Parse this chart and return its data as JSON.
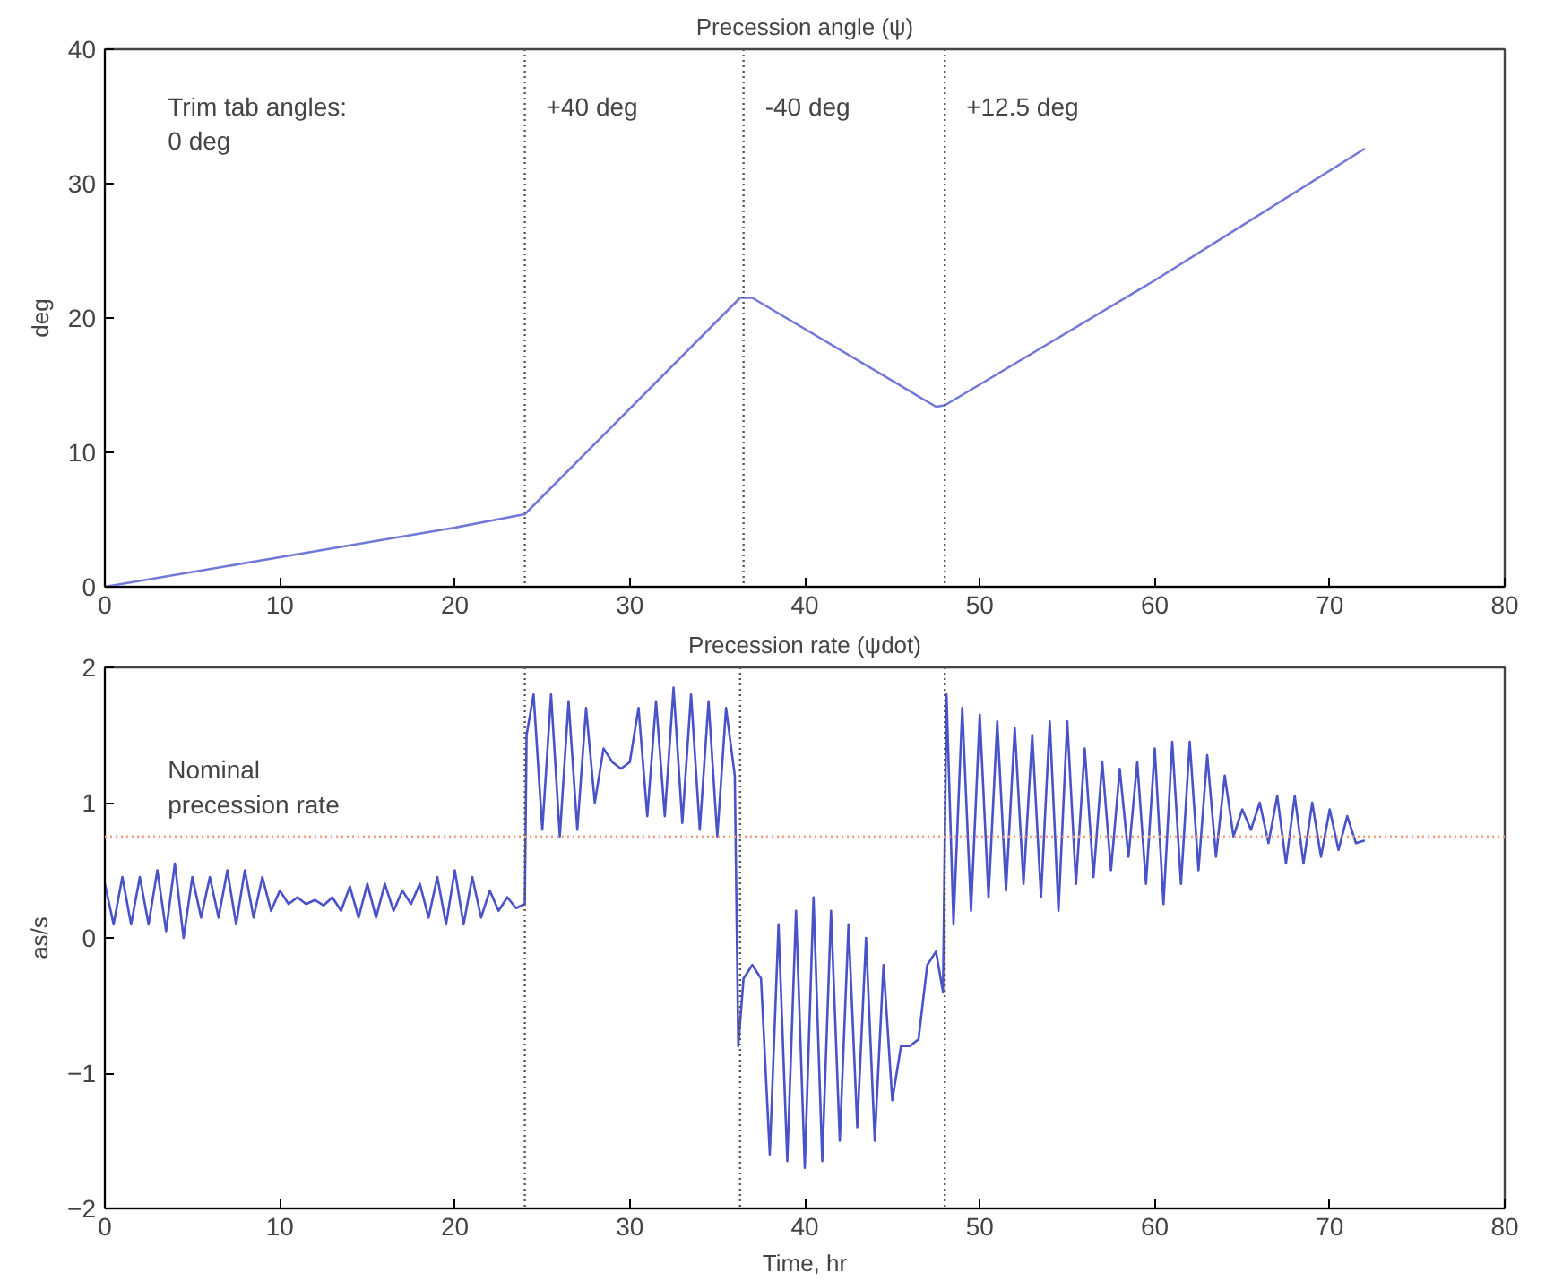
{
  "chart_data": [
    {
      "type": "line",
      "title": "Precession angle (ψ)",
      "ylabel": "deg",
      "x": [
        0,
        10,
        20,
        24,
        36.3,
        37,
        47.5,
        48,
        60,
        72
      ],
      "series": [
        {
          "color": "#7378d8",
          "values": [
            0,
            2.2,
            4.4,
            5.4,
            21.5,
            21.5,
            13.4,
            13.5,
            22.8,
            32.6
          ]
        }
      ],
      "xlim": [
        0,
        80
      ],
      "ylim": [
        0,
        40
      ],
      "xticks": [
        0,
        10,
        20,
        30,
        40,
        50,
        60,
        70,
        80
      ],
      "yticks": [
        0,
        10,
        20,
        30,
        40
      ],
      "grid": false,
      "ref_lines": [
        {
          "axis": "x",
          "value": 24,
          "label": "+40 deg",
          "color": "#555555",
          "line_style": "dotted"
        },
        {
          "axis": "x",
          "value": 36.5,
          "label": "-40 deg",
          "color": "#555555",
          "line_style": "dotted"
        },
        {
          "axis": "x",
          "value": 48,
          "label": "+12.5 deg",
          "color": "#555555",
          "line_style": "dotted"
        }
      ],
      "annotations": [
        "Trim tab angles:\n0 deg"
      ]
    },
    {
      "type": "line",
      "title": "Precession rate (ψdot)",
      "ylabel": "as/s",
      "xlabel": "Time, hr",
      "x": [
        0,
        0.5,
        1,
        1.5,
        2,
        2.5,
        3,
        3.5,
        4,
        4.5,
        5,
        5.5,
        6,
        6.5,
        7,
        7.5,
        8,
        8.5,
        9,
        9.5,
        10,
        10.5,
        11,
        11.5,
        12,
        12.5,
        13,
        13.5,
        14,
        14.5,
        15,
        15.5,
        16,
        16.5,
        17,
        17.5,
        18,
        18.5,
        19,
        19.5,
        20,
        20.5,
        21,
        21.5,
        22,
        22.5,
        23,
        23.5,
        24,
        24.1,
        24.5,
        25,
        25.5,
        26,
        26.5,
        27,
        27.5,
        28,
        28.5,
        29,
        29.5,
        30,
        30.5,
        31,
        31.5,
        32,
        32.5,
        33,
        33.5,
        34,
        34.5,
        35,
        35.5,
        36,
        36.2,
        36.5,
        37,
        37.5,
        38,
        38.5,
        39,
        39.5,
        40,
        40.5,
        41,
        41.5,
        42,
        42.5,
        43,
        43.5,
        44,
        44.5,
        45,
        45.5,
        46,
        46.5,
        47,
        47.5,
        47.9,
        48.1,
        48.5,
        49,
        49.5,
        50,
        50.5,
        51,
        51.5,
        52,
        52.5,
        53,
        53.5,
        54,
        54.5,
        55,
        55.5,
        56,
        56.5,
        57,
        57.5,
        58,
        58.5,
        59,
        59.5,
        60,
        60.5,
        61,
        61.5,
        62,
        62.5,
        63,
        63.5,
        64,
        64.5,
        65,
        65.5,
        66,
        66.5,
        67,
        67.5,
        68,
        68.5,
        69,
        69.5,
        70,
        70.5,
        71,
        71.5,
        72
      ],
      "series": [
        {
          "color": "#4a52c8",
          "values": [
            0.4,
            0.1,
            0.45,
            0.1,
            0.45,
            0.1,
            0.5,
            0.05,
            0.55,
            0.0,
            0.45,
            0.15,
            0.45,
            0.15,
            0.5,
            0.1,
            0.5,
            0.15,
            0.45,
            0.2,
            0.35,
            0.25,
            0.3,
            0.25,
            0.28,
            0.24,
            0.3,
            0.2,
            0.38,
            0.15,
            0.4,
            0.15,
            0.4,
            0.2,
            0.35,
            0.25,
            0.4,
            0.15,
            0.45,
            0.1,
            0.5,
            0.1,
            0.45,
            0.15,
            0.35,
            0.2,
            0.3,
            0.22,
            0.25,
            1.5,
            1.8,
            0.8,
            1.8,
            0.75,
            1.75,
            0.8,
            1.7,
            1.0,
            1.4,
            1.3,
            1.25,
            1.3,
            1.7,
            0.9,
            1.75,
            0.9,
            1.85,
            0.85,
            1.8,
            0.8,
            1.75,
            0.75,
            1.7,
            1.2,
            -0.8,
            -0.3,
            -0.2,
            -0.3,
            -1.6,
            0.1,
            -1.65,
            0.2,
            -1.7,
            0.3,
            -1.65,
            0.2,
            -1.5,
            0.1,
            -1.4,
            0.0,
            -1.5,
            -0.2,
            -1.2,
            -0.8,
            -0.8,
            -0.75,
            -0.2,
            -0.1,
            -0.4,
            1.8,
            0.1,
            1.7,
            0.2,
            1.65,
            0.3,
            1.6,
            0.35,
            1.55,
            0.4,
            1.5,
            0.3,
            1.6,
            0.2,
            1.6,
            0.4,
            1.4,
            0.45,
            1.3,
            0.5,
            1.25,
            0.6,
            1.3,
            0.4,
            1.4,
            0.25,
            1.45,
            0.4,
            1.45,
            0.5,
            1.35,
            0.6,
            1.2,
            0.75,
            0.95,
            0.8,
            1.0,
            0.7,
            1.05,
            0.55,
            1.05,
            0.55,
            1.0,
            0.6,
            0.95,
            0.65,
            0.9,
            0.7,
            0.72
          ]
        }
      ],
      "xlim": [
        0,
        80
      ],
      "ylim": [
        -2,
        2
      ],
      "xticks": [
        0,
        10,
        20,
        30,
        40,
        50,
        60,
        70,
        80
      ],
      "yticks": [
        -2,
        -1,
        0,
        1,
        2
      ],
      "grid": false,
      "ref_lines": [
        {
          "axis": "x",
          "value": 24,
          "color": "#555555",
          "line_style": "dotted"
        },
        {
          "axis": "x",
          "value": 36.3,
          "color": "#555555",
          "line_style": "dotted"
        },
        {
          "axis": "x",
          "value": 48,
          "color": "#555555",
          "line_style": "dotted"
        },
        {
          "axis": "y",
          "value": 0.75,
          "label": "Nominal\nprecession rate",
          "color": "#f0a080",
          "line_style": "dotted"
        }
      ]
    }
  ]
}
